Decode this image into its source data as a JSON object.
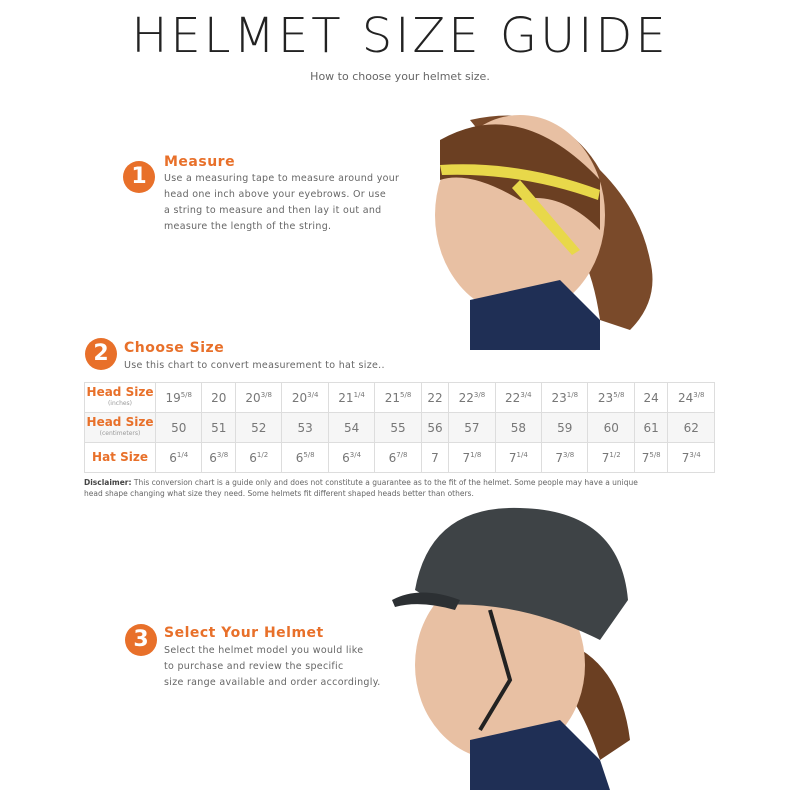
{
  "header": {
    "title": "HELMET SIZE GUIDE",
    "subtitle": "How to choose your helmet size."
  },
  "steps": [
    {
      "number": "1",
      "title": "Measure",
      "lines": [
        "Use a measuring tape to measure around your",
        "head one inch above your eyebrows. Or use",
        "a string to measure and then lay it out and",
        "measure the length of the string."
      ]
    },
    {
      "number": "2",
      "title": "Choose Size",
      "lines": [
        "Use this chart to convert measurement to hat size.."
      ]
    },
    {
      "number": "3",
      "title": "Select Your Helmet",
      "lines": [
        "Select the helmet model you would like",
        "to purchase and review the specific",
        "size range available and order accordingly."
      ]
    }
  ],
  "table": {
    "rows": [
      {
        "label": "Head Size",
        "sublabel": "(inches)",
        "cells": [
          {
            "whole": "19",
            "fraction": "5/8"
          },
          "20",
          {
            "whole": "20",
            "fraction": "3/8"
          },
          {
            "whole": "20",
            "fraction": "3/4"
          },
          {
            "whole": "21",
            "fraction": "1/4"
          },
          {
            "whole": "21",
            "fraction": "5/8"
          },
          "22",
          {
            "whole": "22",
            "fraction": "3/8"
          },
          {
            "whole": "22",
            "fraction": "3/4"
          },
          {
            "whole": "23",
            "fraction": "1/8"
          },
          {
            "whole": "23",
            "fraction": "5/8"
          },
          "24",
          {
            "whole": "24",
            "fraction": "3/8"
          }
        ]
      },
      {
        "label": "Head Size",
        "sublabel": "(centimeters)",
        "cells": [
          "50",
          "51",
          "52",
          "53",
          "54",
          "55",
          "56",
          "57",
          "58",
          "59",
          "60",
          "61",
          "62"
        ]
      },
      {
        "label": "Hat Size",
        "cells": [
          {
            "whole": "6",
            "fraction": "1/4"
          },
          {
            "whole": "6",
            "fraction": "3/8"
          },
          {
            "whole": "6",
            "fraction": "1/2"
          },
          {
            "whole": "6",
            "fraction": "5/8"
          },
          {
            "whole": "6",
            "fraction": "3/4"
          },
          {
            "whole": "6",
            "fraction": "7/8"
          },
          "7",
          {
            "whole": "7",
            "fraction": "1/8"
          },
          {
            "whole": "7",
            "fraction": "1/4"
          },
          {
            "whole": "7",
            "fraction": "3/8"
          },
          {
            "whole": "7",
            "fraction": "1/2"
          },
          {
            "whole": "7",
            "fraction": "5/8"
          },
          {
            "whole": "7",
            "fraction": "3/4"
          }
        ]
      }
    ]
  },
  "disclaimer": {
    "label": "Disclaimer:",
    "lines": [
      "This conversion chart is a guide only and does not constitute a guarantee as to the fit of the helmet. Some people may have a unique",
      "head shape changing what size they need. Some helmets fit different shaped heads better than others."
    ]
  }
}
